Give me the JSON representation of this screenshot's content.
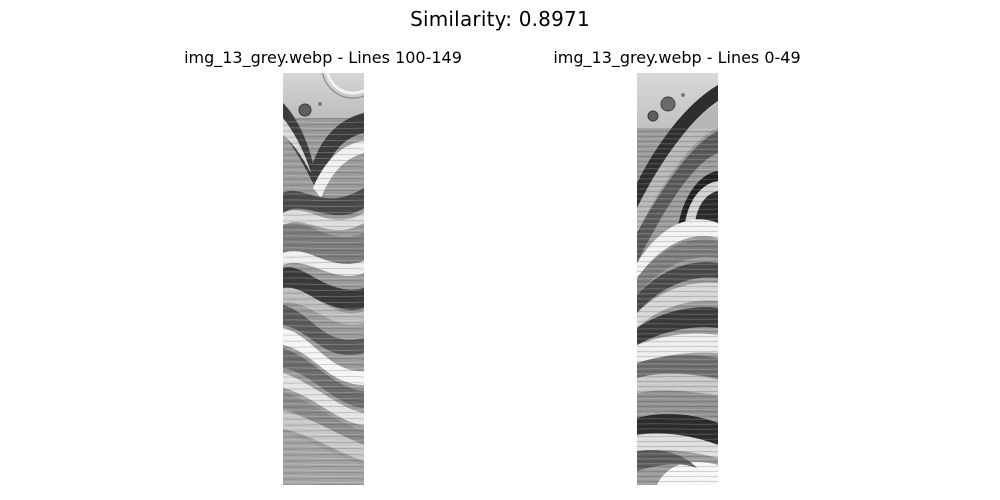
{
  "figure": {
    "suptitle": "Similarity: 0.8971"
  },
  "panels": [
    {
      "title": "img_13_grey.webp - Lines 100-149"
    },
    {
      "title": "img_13_grey.webp - Lines 0-49"
    }
  ]
}
